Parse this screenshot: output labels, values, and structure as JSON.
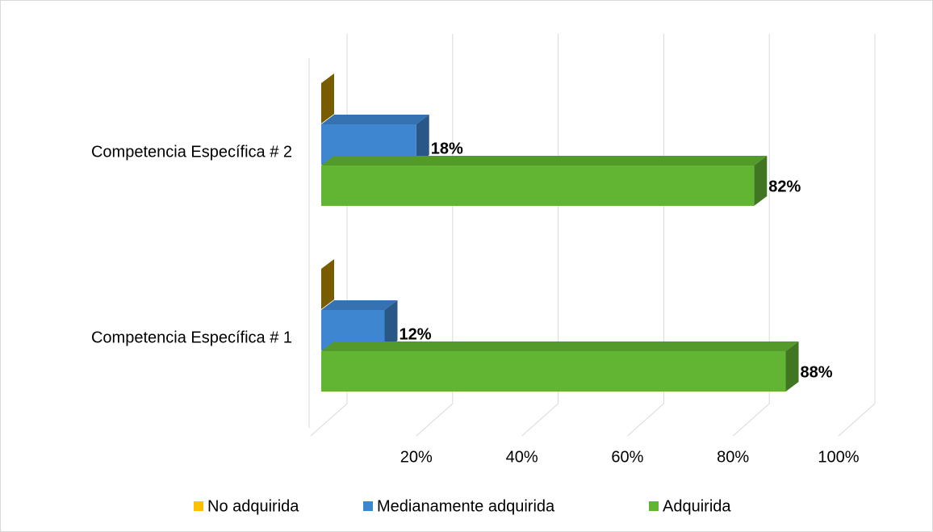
{
  "chart_data": {
    "type": "bar3d_horizontal",
    "categories": [
      "Competencia Específica # 1",
      "Competencia Específica # 2"
    ],
    "series": [
      {
        "name": "No adquirida",
        "color": "#ffc000",
        "values": [
          0,
          0
        ]
      },
      {
        "name": "Medianamente adquirida",
        "color": "#3f86d0",
        "values": [
          12,
          18
        ],
        "value_labels": [
          "12%",
          "18%"
        ]
      },
      {
        "name": "Adquirida",
        "color": "#62b532",
        "values": [
          88,
          82
        ],
        "value_labels": [
          "88%",
          "82%"
        ]
      }
    ],
    "xlim": [
      0,
      100
    ],
    "xticks": [
      {
        "value": 20,
        "label": "20%"
      },
      {
        "value": 40,
        "label": "40%"
      },
      {
        "value": 60,
        "label": "60%"
      },
      {
        "value": 80,
        "label": "80%"
      },
      {
        "value": 100,
        "label": "100%"
      }
    ],
    "grid": true,
    "legend": "bottom"
  }
}
